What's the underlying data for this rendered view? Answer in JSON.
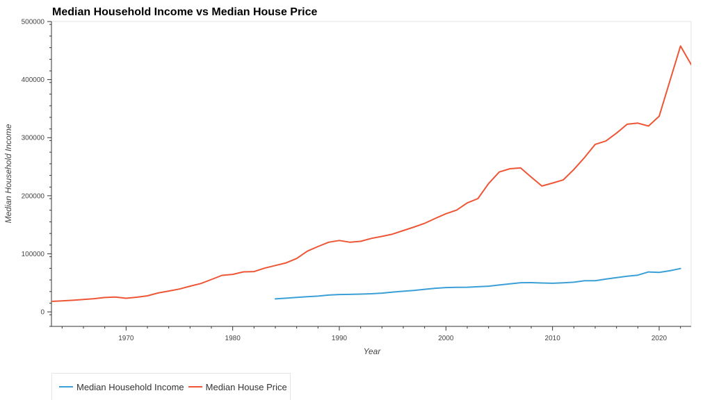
{
  "colors": {
    "income": "#3a9fd6",
    "price": "#ee5535"
  },
  "chart_data": {
    "type": "line",
    "title": "Median Household Income vs Median House Price",
    "xlabel": "Year",
    "ylabel": "Median Household Income",
    "xlim": [
      1963,
      2023
    ],
    "ylim": [
      -25000,
      500000
    ],
    "x_ticks": [
      1970,
      1980,
      1990,
      2000,
      2010,
      2020
    ],
    "y_ticks": [
      0,
      100000,
      200000,
      300000,
      400000,
      500000
    ],
    "grid": false,
    "legend_position": "bottom-left",
    "series": [
      {
        "name": "Median Household Income",
        "color": "#3a9fd6",
        "x": [
          1984,
          1985,
          1986,
          1987,
          1988,
          1989,
          1990,
          1991,
          1992,
          1993,
          1994,
          1995,
          1996,
          1997,
          1998,
          1999,
          2000,
          2001,
          2002,
          2003,
          2004,
          2005,
          2006,
          2007,
          2008,
          2009,
          2010,
          2011,
          2012,
          2013,
          2014,
          2015,
          2016,
          2017,
          2018,
          2019,
          2020,
          2021,
          2022
        ],
        "y": [
          22400,
          23600,
          24900,
          26100,
          27200,
          28900,
          29900,
          30100,
          30600,
          31200,
          32300,
          34100,
          35500,
          37000,
          38900,
          40700,
          41900,
          42200,
          42400,
          43300,
          44300,
          46300,
          48200,
          50200,
          50300,
          49800,
          49300,
          50100,
          51000,
          53600,
          53700,
          56500,
          59000,
          61400,
          63200,
          68700,
          68000,
          70800,
          74600
        ]
      },
      {
        "name": "Median House Price",
        "color": "#ee5535",
        "x": [
          1963,
          1964,
          1965,
          1966,
          1967,
          1968,
          1969,
          1970,
          1971,
          1972,
          1973,
          1974,
          1975,
          1976,
          1977,
          1978,
          1979,
          1980,
          1981,
          1982,
          1983,
          1984,
          1985,
          1986,
          1987,
          1988,
          1989,
          1990,
          1991,
          1992,
          1993,
          1994,
          1995,
          1996,
          1997,
          1998,
          1999,
          2000,
          2001,
          2002,
          2003,
          2004,
          2005,
          2006,
          2007,
          2008,
          2009,
          2010,
          2011,
          2012,
          2013,
          2014,
          2015,
          2016,
          2017,
          2018,
          2019,
          2020,
          2021,
          2022,
          2023
        ],
        "y": [
          18000,
          18900,
          20000,
          21400,
          22700,
          24700,
          25600,
          23400,
          25200,
          27600,
          32500,
          35900,
          39300,
          44200,
          48800,
          55700,
          62900,
          64600,
          68900,
          69300,
          75300,
          79900,
          84300,
          92000,
          104500,
          112500,
          120000,
          122900,
          120000,
          121500,
          126500,
          130000,
          133900,
          140000,
          146000,
          152500,
          161000,
          169000,
          175200,
          187600,
          195000,
          221000,
          240900,
          246500,
          247900,
          232100,
          216700,
          221800,
          227200,
          245200,
          265800,
          288500,
          294200,
          307800,
          323100,
          325000,
          320000,
          336900,
          397100,
          457800,
          426000
        ]
      }
    ]
  },
  "legend": {
    "items": [
      {
        "label": "Median Household Income"
      },
      {
        "label": "Median House Price"
      }
    ]
  }
}
